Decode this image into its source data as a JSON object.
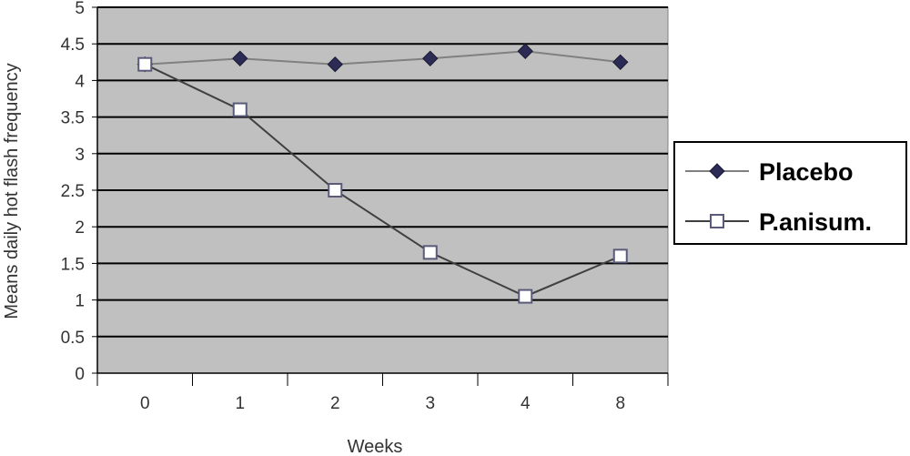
{
  "chart_data": {
    "type": "line",
    "categories": [
      "0",
      "1",
      "2",
      "3",
      "4",
      "8"
    ],
    "xlabel": "Weeks",
    "ylabel": "Means daily hot flash frequency",
    "ylim": [
      0,
      5
    ],
    "yticks": [
      "0",
      "0.5",
      "1",
      "1.5",
      "2",
      "2.5",
      "3",
      "3.5",
      "4",
      "4.5",
      "5"
    ],
    "grid": true,
    "legend_position": "right",
    "plot_background": "#c0c0c0",
    "series": [
      {
        "name": "Placebo",
        "values": [
          4.22,
          4.3,
          4.22,
          4.3,
          4.4,
          4.25
        ],
        "marker": "filled-diamond",
        "line_color": "#808080",
        "marker_color": "#2b2b55"
      },
      {
        "name": "P.anisum.",
        "values": [
          4.22,
          3.6,
          2.5,
          1.65,
          1.05,
          1.6
        ],
        "marker": "hollow-square",
        "line_color": "#404040",
        "marker_color": "#ffffff"
      }
    ]
  }
}
